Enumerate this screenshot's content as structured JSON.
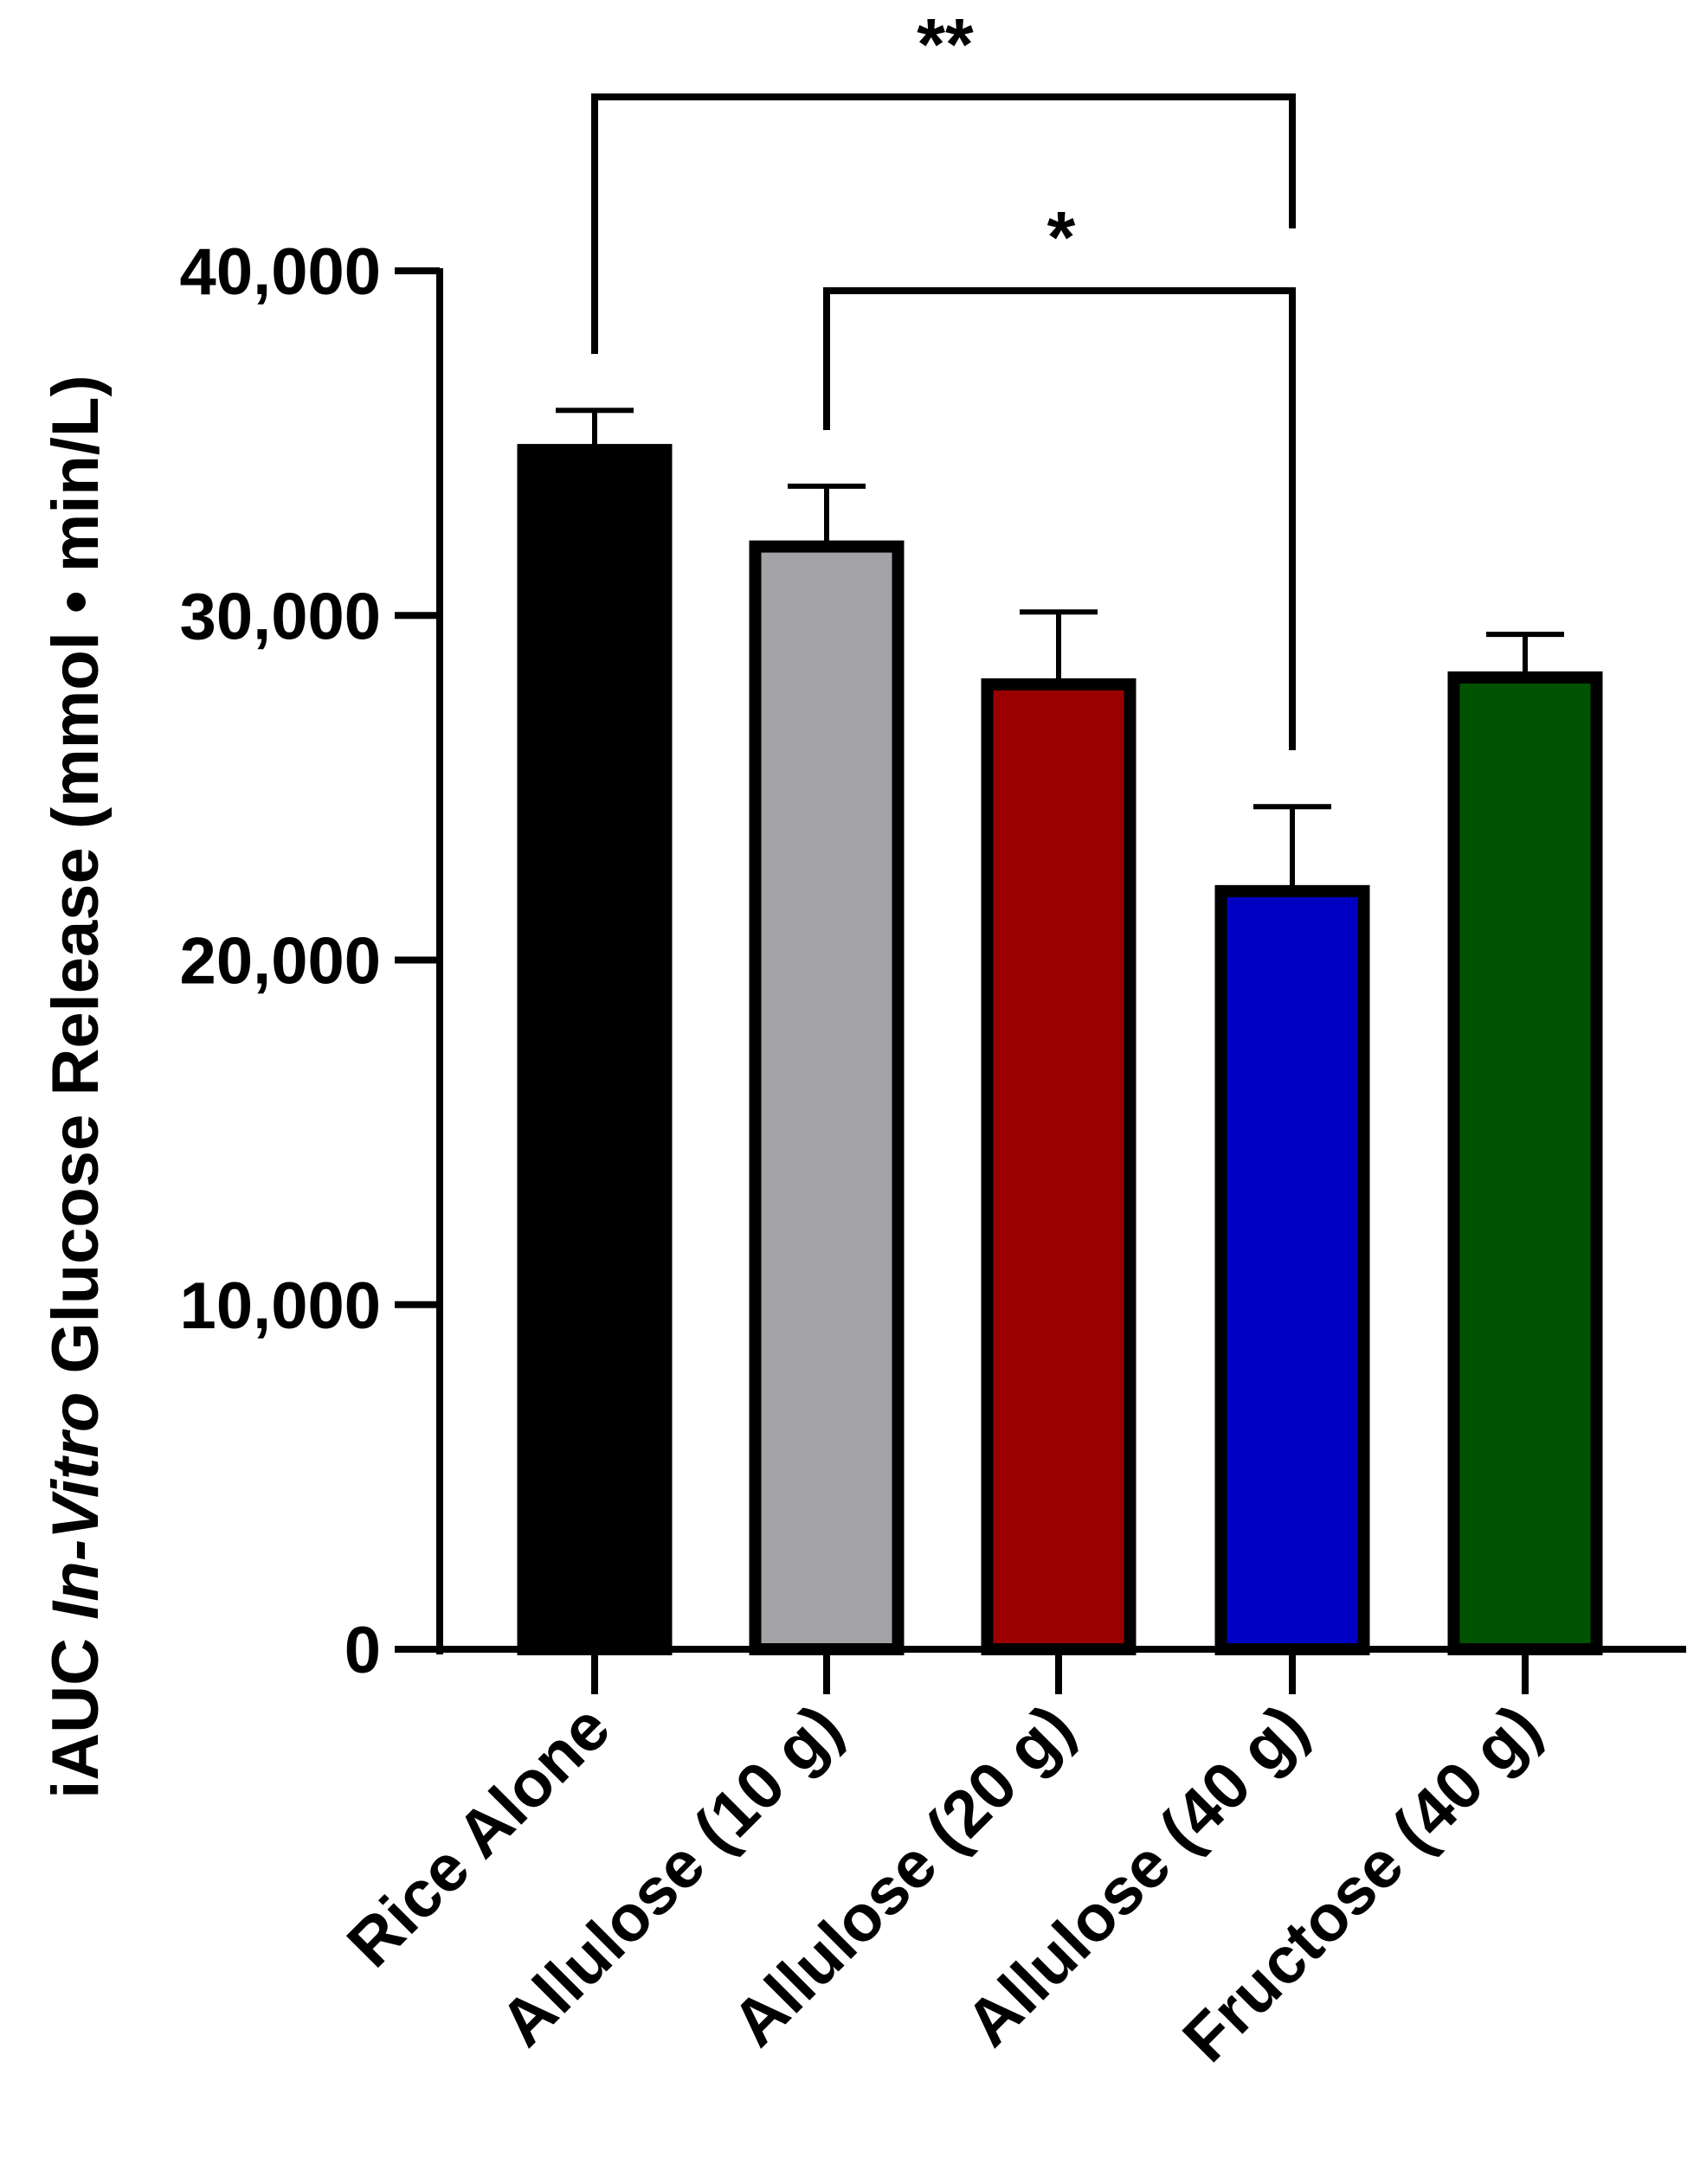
{
  "chart_data": {
    "type": "bar",
    "title": "",
    "xlabel": "",
    "ylabel": {
      "prefix": "iAUC ",
      "italic": "In-Vitro",
      "suffix": " Glucose Release (mmol • min/L)"
    },
    "ylim": [
      0,
      40000
    ],
    "yticks": [
      0,
      10000,
      20000,
      30000,
      40000
    ],
    "ytick_labels": [
      "0",
      "10,000",
      "20,000",
      "30,000",
      "40,000"
    ],
    "grid": false,
    "categories": [
      "Rice Alone",
      "Allulose (10 g)",
      "Allulose (20 g)",
      "Allulose (40 g)",
      "Fructose (40 g)"
    ],
    "values": [
      34800,
      32000,
      28000,
      22000,
      28200
    ],
    "errors": [
      1150,
      1750,
      2100,
      2450,
      1250
    ],
    "colors": [
      "#000000",
      "#a3a2a7",
      "#9b0000",
      "#0000c2",
      "#005300"
    ],
    "significance": [
      {
        "from": 0,
        "to": 3,
        "label": "**"
      },
      {
        "from": 1,
        "to": 3,
        "label": "*"
      }
    ]
  }
}
